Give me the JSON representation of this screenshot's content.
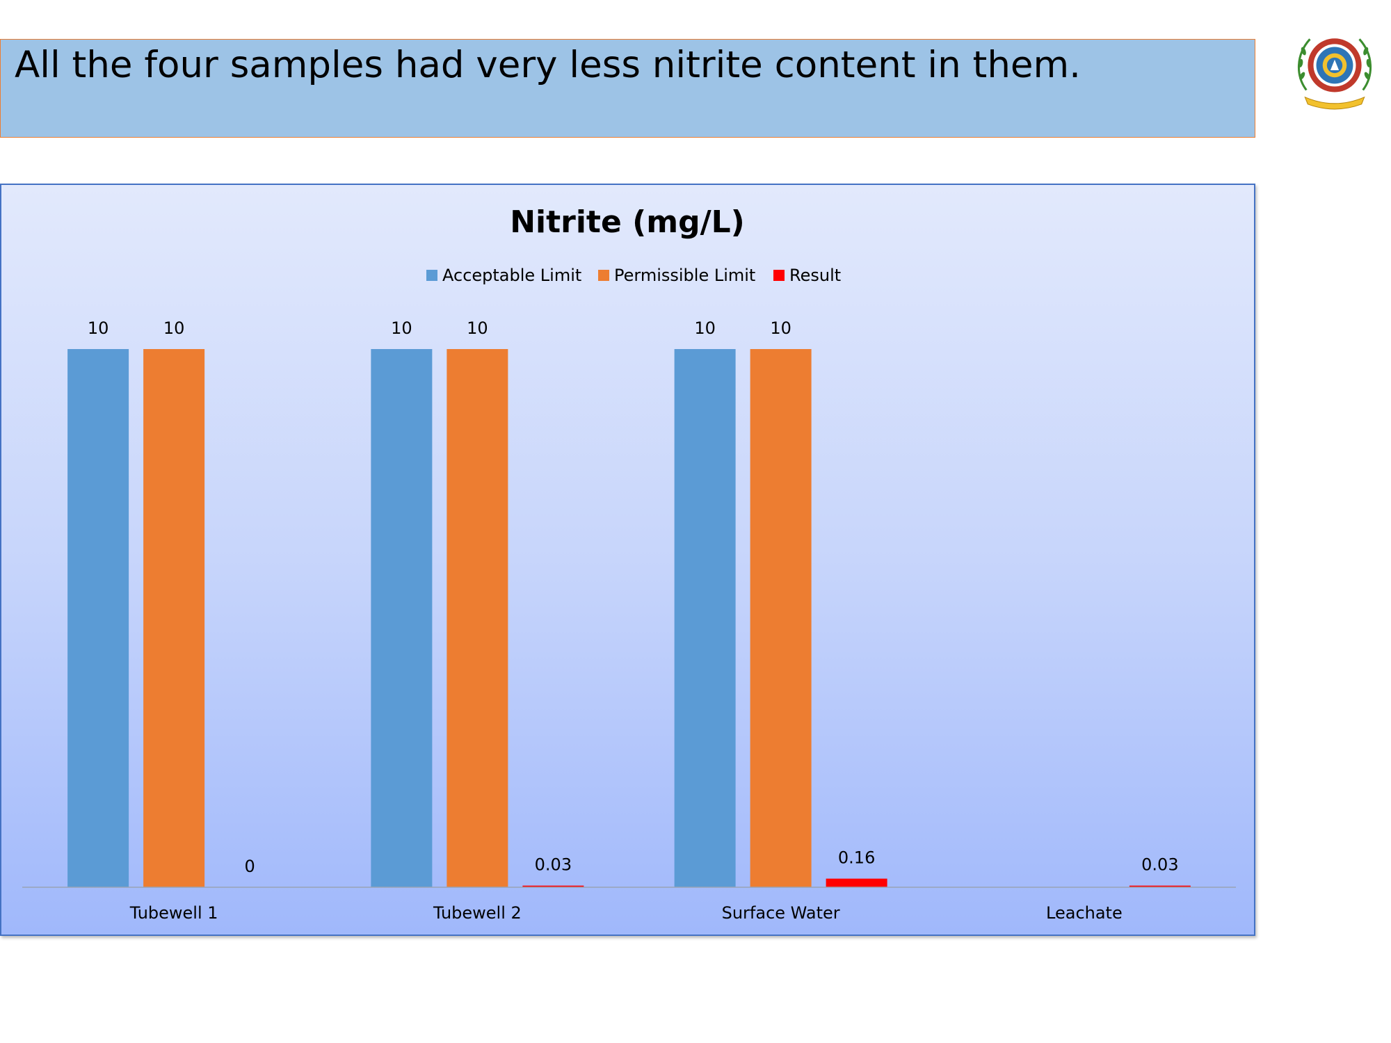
{
  "slide": {
    "heading": "All the four samples had very less nitrite content in them."
  },
  "logo": {
    "icon": "institution-emblem-icon",
    "colors": [
      "#c0392b",
      "#2e75b6",
      "#3c8d2f",
      "#f2c12e"
    ]
  },
  "chart_data": {
    "type": "bar",
    "title": "Nitrite (mg/L)",
    "xlabel": "",
    "ylabel": "",
    "categories": [
      "Tubewell 1",
      "Tubewell 2",
      "Surface Water",
      "Leachate"
    ],
    "series": [
      {
        "name": "Acceptable Limit",
        "color": "#5b9bd5",
        "values": [
          10,
          10,
          10,
          null
        ]
      },
      {
        "name": "Permissible Limit",
        "color": "#ed7d31",
        "values": [
          10,
          10,
          10,
          null
        ]
      },
      {
        "name": "Result",
        "color": "#ff0000",
        "values": [
          0,
          0.03,
          0.16,
          0.03
        ]
      }
    ],
    "data_labels": [
      [
        "10",
        "10",
        "10",
        ""
      ],
      [
        "10",
        "10",
        "10",
        ""
      ],
      [
        "0",
        "0.03",
        "0.16",
        "0.03"
      ]
    ],
    "ylim": [
      0,
      10
    ],
    "grid": false,
    "legend": "top-center"
  }
}
